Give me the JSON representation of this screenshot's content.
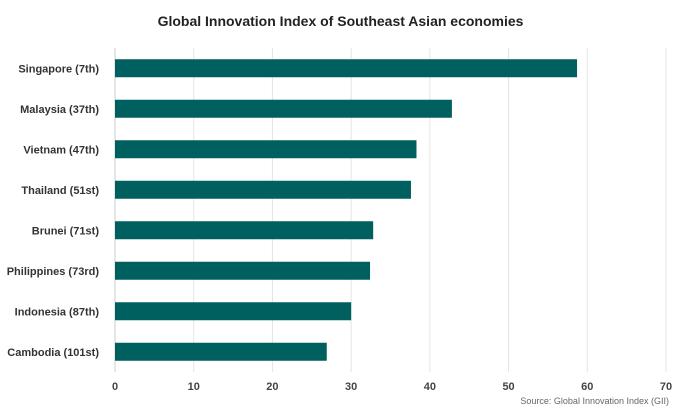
{
  "chart_data": {
    "type": "bar",
    "orientation": "horizontal",
    "title": "Global Innovation Index of Southeast Asian economies",
    "categories": [
      "Singapore (7th)",
      "Malaysia (37th)",
      "Vietnam (47th)",
      "Thailand (51st)",
      "Brunei (71st)",
      "Philippines (73rd)",
      "Indonesia (87th)",
      "Cambodia (101st)"
    ],
    "values": [
      58.7,
      42.8,
      38.3,
      37.6,
      32.8,
      32.4,
      30.0,
      26.9
    ],
    "xlim": [
      0,
      70
    ],
    "xticks": [
      0,
      10,
      20,
      30,
      40,
      50,
      60,
      70
    ],
    "grid": true,
    "legend": "none",
    "source": "Source: Global Innovation Index (GII)",
    "bar_color": "#005f5f"
  }
}
